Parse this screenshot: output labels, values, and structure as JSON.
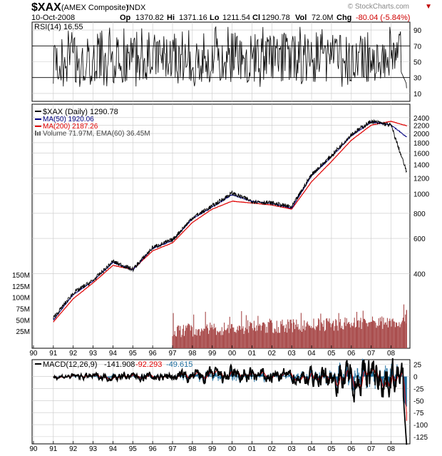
{
  "header": {
    "symbol": "$XAX",
    "name": "(AMEX Composite)",
    "exchange": "INDX",
    "date": "10-Oct-2008",
    "op_label": "Op",
    "op": "1370.82",
    "hi_label": "Hi",
    "hi": "1371.16",
    "lo_label": "Lo",
    "lo": "1211.54",
    "cl_label": "Cl",
    "cl": "1290.78",
    "vol_label": "Vol",
    "vol": "72.0M",
    "chg_label": "Chg",
    "chg": "-80.04 (-5.84%)",
    "watermark": "© StockCharts.com"
  },
  "colors": {
    "price": "#000000",
    "ma50": "#000080",
    "ma200": "#e00000",
    "volume": "#a84a4a",
    "macd_signal": "#e00000",
    "macd_hist": "#1f6fa0",
    "grid": "#c8c8c8",
    "chg_down": "#d00000"
  },
  "chart_data": [
    {
      "type": "line",
      "title": "RSI(14) 16.55",
      "legend": "RSI(14) 16.55",
      "ylim": [
        0,
        100
      ],
      "y_ticks": [
        10,
        30,
        50,
        70,
        90
      ],
      "reference_lines": [
        30,
        70
      ],
      "last": 16.55
    },
    {
      "type": "line",
      "title": "$XAX (Daily) 1290.78",
      "x_ticks": [
        "90",
        "91",
        "92",
        "93",
        "94",
        "95",
        "96",
        "97",
        "98",
        "99",
        "00",
        "01",
        "02",
        "03",
        "04",
        "05",
        "06",
        "07",
        "08"
      ],
      "x_anchor_years": [
        1991,
        1992,
        1993,
        1994,
        1995,
        1996,
        1997,
        1998,
        1999,
        2000,
        2001,
        2002,
        2003,
        2004,
        2005,
        2006,
        2007,
        2008,
        2008.78
      ],
      "price_ticks": [
        400,
        600,
        800,
        1000,
        1200,
        1400,
        1600,
        1800,
        2000,
        2200,
        2400
      ],
      "price_scale": "log",
      "volume_ticks": [
        "25M",
        "50M",
        "75M",
        "100M",
        "125M",
        "150M"
      ],
      "legend": [
        "$XAX (Daily) 1290.78",
        "MA(50) 1920.06",
        "MA(200) 2187.26",
        "Volume 71.97M, EMA(60) 36.45M"
      ],
      "series": [
        {
          "name": "$XAX",
          "values": [
            240,
            320,
            370,
            460,
            420,
            540,
            590,
            760,
            870,
            1010,
            920,
            900,
            860,
            1250,
            1550,
            1980,
            2300,
            2200,
            1290
          ]
        },
        {
          "name": "MA(50)",
          "values": [
            235,
            315,
            368,
            455,
            418,
            535,
            585,
            752,
            860,
            990,
            918,
            895,
            850,
            1230,
            1530,
            1950,
            2280,
            2210,
            1920
          ]
        },
        {
          "name": "MA(200)",
          "values": [
            230,
            300,
            360,
            440,
            420,
            520,
            570,
            720,
            840,
            920,
            900,
            880,
            840,
            1150,
            1450,
            1850,
            2200,
            2300,
            2187
          ]
        }
      ],
      "volume": {
        "start_year": 1997.0,
        "typical_range_M": [
          25,
          75
        ],
        "last_M": 71.97,
        "ema60_M": 36.45
      }
    },
    {
      "type": "line",
      "title": "MACD(12,26,9) -141.908, -92.293, -49.615",
      "legend": [
        "MACD(12,26,9)",
        "-141.908",
        "-92.293",
        "-49.615"
      ],
      "ylim": [
        -140,
        35
      ],
      "y_ticks": [
        25,
        0,
        -25,
        -50,
        -75,
        -100,
        -125
      ],
      "x_ticks": [
        "90",
        "91",
        "92",
        "93",
        "94",
        "95",
        "96",
        "97",
        "98",
        "99",
        "00",
        "01",
        "02",
        "03",
        "04",
        "05",
        "06",
        "07",
        "08"
      ],
      "values": {
        "macd": -141.908,
        "signal": -92.293,
        "histogram": -49.615
      }
    }
  ]
}
